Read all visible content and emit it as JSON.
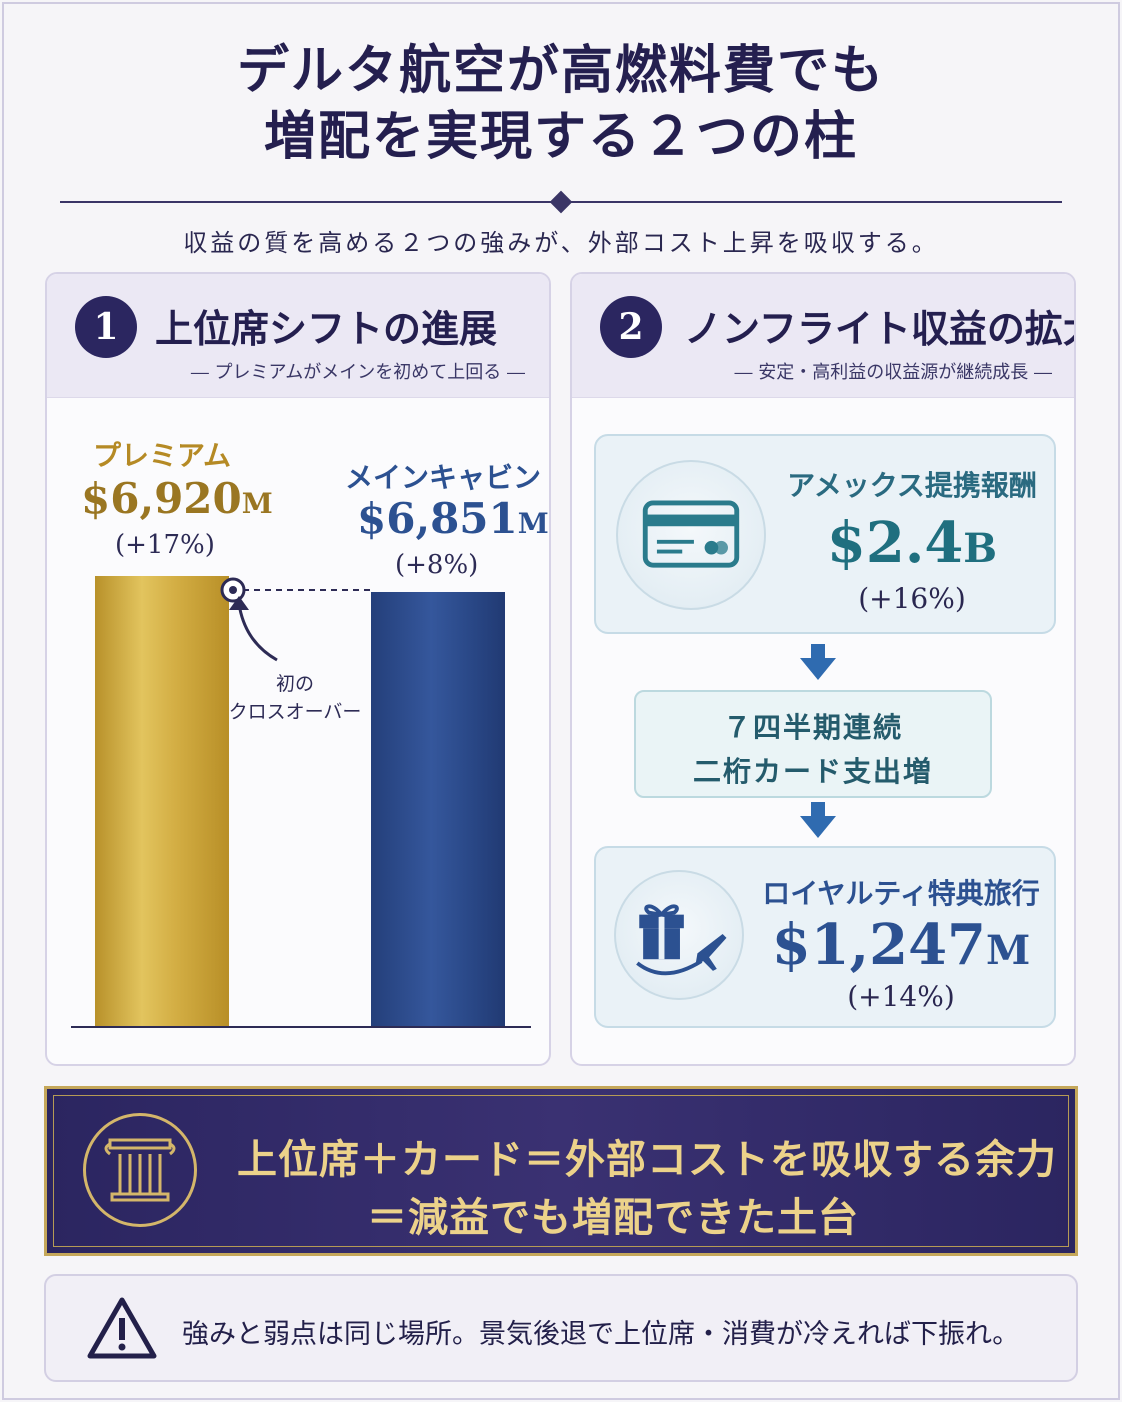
{
  "title": {
    "line1": "デルタ航空が高燃料費でも",
    "line2": "増配を実現する２つの柱"
  },
  "subtitle": "収益の質を高める２つの強みが、外部コスト上昇を吸収する。",
  "pillar1": {
    "number": "1",
    "title": "上位席シフトの進展",
    "subtitle": "― プレミアムがメインを初めて上回る ―",
    "annotation_line1": "初の",
    "annotation_line2": "クロスオーバー",
    "colors": {
      "premium": "#c9a43a",
      "main": "#2c4e8f"
    }
  },
  "chart_data": {
    "type": "bar",
    "categories": [
      "プレミアム",
      "メインキャビン"
    ],
    "values": [
      6920,
      6851
    ],
    "value_labels": [
      "$6,920",
      "$6,851"
    ],
    "value_units": [
      "M",
      "M"
    ],
    "growth_labels": [
      "(+17%)",
      "(+8%)"
    ]
  },
  "pillar2": {
    "number": "2",
    "title": "ノンフライト収益の拡大",
    "subtitle": "― 安定・高利益の収益源が継続成長 ―",
    "amex": {
      "icon": "credit-card-icon",
      "label": "アメックス提携報酬",
      "value": "$2.4",
      "unit": "B",
      "growth": "(+16%)",
      "color": "#1f6f7f"
    },
    "middle": {
      "line1": "７四半期連続",
      "line2": "二桁カード支出増"
    },
    "loyalty": {
      "icon": "gift-plane-icon",
      "label": "ロイヤルティ特典旅行",
      "value": "$1,247",
      "unit": "M",
      "growth": "(+14%)",
      "color": "#2c5191"
    }
  },
  "banner": {
    "icon": "pillar-icon",
    "line1": "上位席＋カード＝外部コストを吸収する余力",
    "line2": "＝減益でも増配できた土台"
  },
  "warning": {
    "icon": "warning-icon",
    "text": "強みと弱点は同じ場所。景気後退で上位席・消費が冷えれば下振れ。"
  }
}
